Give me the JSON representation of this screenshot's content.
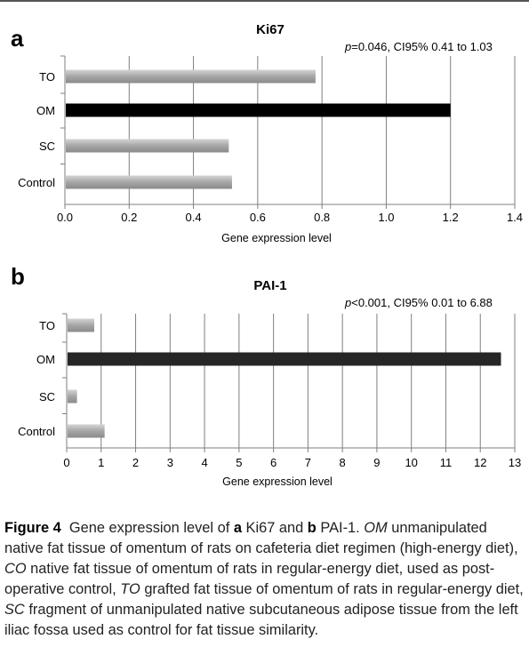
{
  "chart_data": [
    {
      "panel": "a",
      "type": "bar",
      "orientation": "horizontal",
      "title": "Ki67",
      "annotation": {
        "p_label": "p",
        "text": "=0.046, CI95% 0.41 to 1.03"
      },
      "categories": [
        "TO",
        "OM",
        "SC",
        "Control"
      ],
      "values": [
        0.78,
        1.2,
        0.51,
        0.52
      ],
      "colors": [
        "#a6a6a6",
        "#000000",
        "#a6a6a6",
        "#a6a6a6"
      ],
      "xlabel": "Gene expression level",
      "xlim": [
        0,
        1.4
      ],
      "xticks": [
        "0.0",
        "0.2",
        "0.4",
        "0.6",
        "0.8",
        "1.0",
        "1.2",
        "1.4"
      ],
      "grid": true
    },
    {
      "panel": "b",
      "type": "bar",
      "orientation": "horizontal",
      "title": "PAI-1",
      "annotation": {
        "p_label": "p",
        "text": "<0.001, CI95% 0.01 to 6.88"
      },
      "categories": [
        "TO",
        "OM",
        "SC",
        "Control"
      ],
      "values": [
        0.8,
        12.6,
        0.3,
        1.1
      ],
      "colors": [
        "#a6a6a6",
        "#262626",
        "#a6a6a6",
        "#a6a6a6"
      ],
      "xlabel": "Gene expression level",
      "xlim": [
        0,
        13
      ],
      "xticks": [
        "0",
        "1",
        "2",
        "3",
        "4",
        "5",
        "6",
        "7",
        "8",
        "9",
        "10",
        "11",
        "12",
        "13"
      ],
      "grid": true
    }
  ],
  "caption": {
    "figure_label": "Figure 4",
    "intro": "Gene expression level of ",
    "a_letter": "a",
    "a_gene": " Ki67 and ",
    "b_letter": "b",
    "b_gene": " PAI-1. ",
    "om_abbr": "OM",
    "om_text": " unmanipulated native fat tissue of omentum of rats on cafeteria diet regimen (high-energy diet), ",
    "co_abbr": "CO",
    "co_text": " native fat tissue of omentum of rats in regular-energy diet, used as post-operative control, ",
    "to_abbr": "TO",
    "to_text": " grafted fat tissue of omentum of rats in regular-energy diet, ",
    "sc_abbr": "SC",
    "sc_text": " fragment of unmanipulated native subcutaneous adipose tissue from the left iliac fossa used as control for fat tissue similarity."
  }
}
